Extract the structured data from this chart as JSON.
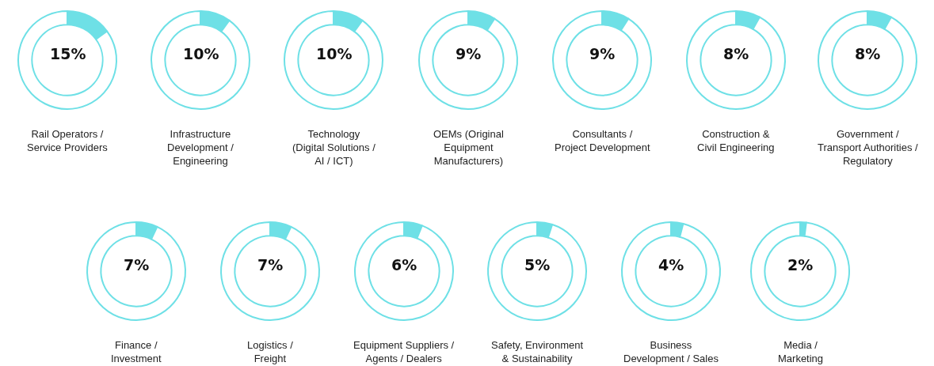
{
  "chart_data": [
    {
      "type": "donut",
      "title": "Rail Operators /\nService Providers",
      "categories": [
        null,
        null
      ],
      "values": [
        15,
        85
      ],
      "colors": [
        "#6ee0e6",
        "#ffffff"
      ],
      "value_labels": [
        "15%",
        null
      ]
    },
    {
      "type": "donut",
      "title": "Infrastructure\nDevelopment /\nEngineering",
      "categories": [
        null,
        null
      ],
      "values": [
        10,
        90
      ],
      "colors": [
        "#6ee0e6",
        "#ffffff"
      ],
      "value_labels": [
        "10%",
        null
      ]
    },
    {
      "type": "donut",
      "title": "Technology\n(Digital Solutions /\nAI / ICT)",
      "categories": [
        null,
        null
      ],
      "values": [
        10,
        90
      ],
      "colors": [
        "#6ee0e6",
        "#ffffff"
      ],
      "value_labels": [
        "10%",
        null
      ]
    },
    {
      "type": "donut",
      "title": "OEMs (Original\nEquipment\nManufacturers)",
      "categories": [
        null,
        null
      ],
      "values": [
        9,
        91
      ],
      "colors": [
        "#6ee0e6",
        "#ffffff"
      ],
      "value_labels": [
        "9%",
        null
      ]
    },
    {
      "type": "donut",
      "title": "Consultants /\nProject Development",
      "categories": [
        null,
        null
      ],
      "values": [
        9,
        91
      ],
      "colors": [
        "#6ee0e6",
        "#ffffff"
      ],
      "value_labels": [
        "9%",
        null
      ]
    },
    {
      "type": "donut",
      "title": "Construction &\nCivil Engineering",
      "categories": [
        null,
        null
      ],
      "values": [
        8,
        92
      ],
      "colors": [
        "#6ee0e6",
        "#ffffff"
      ],
      "value_labels": [
        "8%",
        null
      ]
    },
    {
      "type": "donut",
      "title": "Government /\nTransport Authorities /\nRegulatory",
      "categories": [
        null,
        null
      ],
      "values": [
        8,
        92
      ],
      "colors": [
        "#6ee0e6",
        "#ffffff"
      ],
      "value_labels": [
        "8%",
        null
      ]
    },
    {
      "type": "donut",
      "title": "Finance /\nInvestment",
      "categories": [
        null,
        null
      ],
      "values": [
        7,
        93
      ],
      "colors": [
        "#6ee0e6",
        "#ffffff"
      ],
      "value_labels": [
        "7%",
        null
      ]
    },
    {
      "type": "donut",
      "title": "Logistics /\nFreight",
      "categories": [
        null,
        null
      ],
      "values": [
        7,
        93
      ],
      "colors": [
        "#6ee0e6",
        "#ffffff"
      ],
      "value_labels": [
        "7%",
        null
      ]
    },
    {
      "type": "donut",
      "title": "Equipment Suppliers /\nAgents / Dealers",
      "categories": [
        null,
        null
      ],
      "values": [
        6,
        94
      ],
      "colors": [
        "#6ee0e6",
        "#ffffff"
      ],
      "value_labels": [
        "6%",
        null
      ]
    },
    {
      "type": "donut",
      "title": "Safety, Environment\n& Sustainability",
      "categories": [
        null,
        null
      ],
      "values": [
        5,
        95
      ],
      "colors": [
        "#6ee0e6",
        "#ffffff"
      ],
      "value_labels": [
        "5%",
        null
      ]
    },
    {
      "type": "donut",
      "title": "Business\nDevelopment / Sales",
      "categories": [
        null,
        null
      ],
      "values": [
        4,
        96
      ],
      "colors": [
        "#6ee0e6",
        "#ffffff"
      ],
      "value_labels": [
        "4%",
        null
      ]
    },
    {
      "type": "donut",
      "title": "Media /\nMarketing",
      "categories": [
        null,
        null
      ],
      "values": [
        2,
        98
      ],
      "colors": [
        "#6ee0e6",
        "#ffffff"
      ],
      "value_labels": [
        "2%",
        null
      ]
    }
  ]
}
